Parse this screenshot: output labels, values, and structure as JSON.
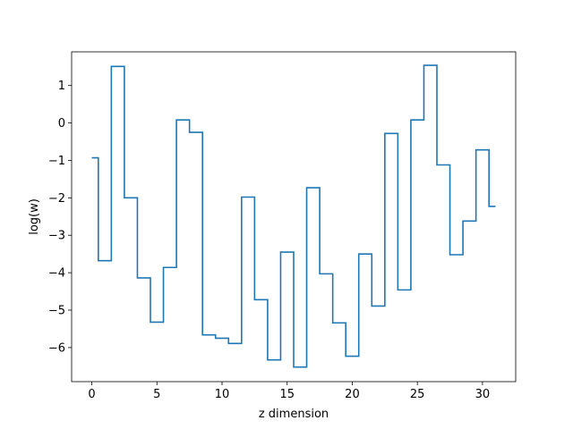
{
  "chart_data": {
    "type": "line",
    "drawstyle": "steps-mid",
    "title": "",
    "xlabel": "z dimension",
    "ylabel": "log(w)",
    "xlim": [
      -1.55,
      32.55
    ],
    "ylim": [
      -6.91,
      1.9
    ],
    "xticks": [
      0,
      5,
      10,
      15,
      20,
      25,
      30
    ],
    "yticks": [
      -6,
      -5,
      -4,
      -3,
      -2,
      -1,
      0,
      1
    ],
    "grid": false,
    "legend": "none",
    "series": [
      {
        "color": "#1f77b4",
        "x": [
          0,
          1,
          2,
          3,
          4,
          5,
          6,
          7,
          8,
          9,
          10,
          11,
          12,
          13,
          14,
          15,
          16,
          17,
          18,
          19,
          20,
          21,
          22,
          23,
          24,
          25,
          26,
          27,
          28,
          29,
          30,
          31
        ],
        "values": [
          -0.93,
          -3.68,
          1.51,
          -2.0,
          -4.14,
          -5.32,
          -3.86,
          0.08,
          -0.25,
          -5.66,
          -5.75,
          -5.89,
          -1.98,
          -4.72,
          -6.33,
          -3.45,
          -6.52,
          -1.73,
          -4.03,
          -5.34,
          -6.23,
          -3.5,
          -4.89,
          -0.28,
          -4.46,
          0.08,
          1.54,
          -1.12,
          -3.52,
          -2.62,
          -0.72,
          -2.23
        ]
      }
    ]
  }
}
